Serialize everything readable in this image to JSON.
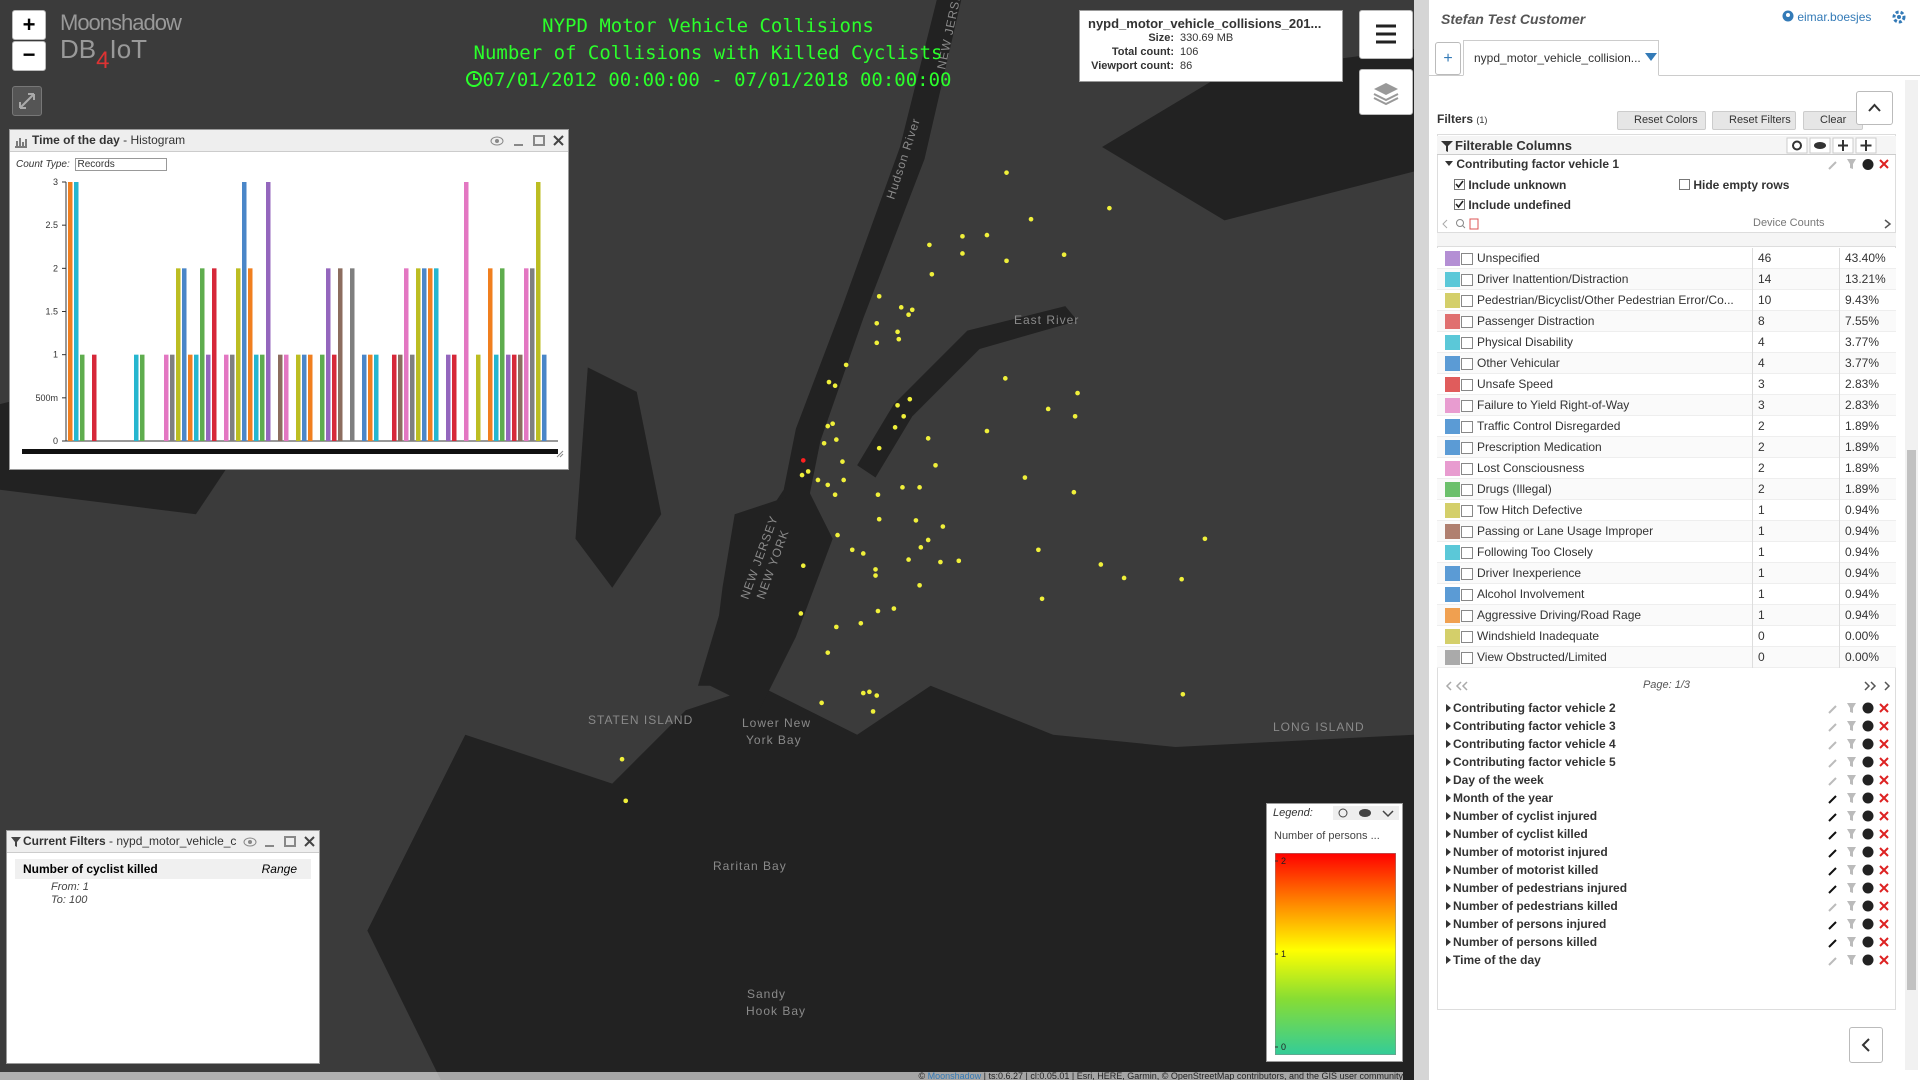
{
  "logo": {
    "brand": "Moonshadow",
    "db": "DB",
    "four": "4",
    "iot": "IoT"
  },
  "zoom": {
    "in": "+",
    "out": "−"
  },
  "map": {
    "title": [
      "NYPD Motor Vehicle Collisions",
      "Number of Collisions with Killed Cyclists",
      "07/01/2012 00:00:00 - 07/01/2018 00:00:00"
    ],
    "info": {
      "file": "nypd_motor_vehicle_collisions_201...",
      "rows": [
        {
          "label": "Size:",
          "value": "330.69 MB"
        },
        {
          "label": "Total count:",
          "value": 106
        },
        {
          "label": "Viewport count:",
          "value": 86
        }
      ]
    },
    "labels": [
      "Hudson River",
      "East River",
      "STATEN ISLAND",
      "Lower New",
      "York Bay",
      "Raritan Bay",
      "Sandy",
      "Hook Bay",
      "LONG ISLAND",
      "NEW JERSEY",
      "NEW JERSEY",
      "NEW YORK"
    ],
    "attribution": {
      "prefix": "©",
      "link": "Moonshadow",
      "rest": "| ts:0.6.27 | cl:0.05.01 | Esri, HERE, Garmin, © OpenStreetMap contributors, and the GIS user community"
    }
  },
  "histogram": {
    "title": "Time of the day",
    "subtitle": "- Histogram",
    "count_type_label": "Count Type:",
    "count_type": "Records",
    "ylim": [
      0,
      3
    ],
    "yticks": [
      0,
      {
        "value": 0.5,
        "label": "500m"
      },
      1,
      1.5,
      2,
      2.5,
      3
    ],
    "values": [
      3,
      3,
      1,
      0,
      1,
      0,
      0,
      0,
      0,
      0,
      0,
      1,
      1,
      0,
      0,
      0,
      1,
      1,
      2,
      2,
      1,
      1,
      2,
      1,
      2,
      0,
      1,
      1,
      2,
      3,
      2,
      1,
      1,
      3,
      0,
      1,
      1,
      0,
      1,
      1,
      1,
      0,
      1,
      2,
      1,
      2,
      0,
      2,
      0,
      1,
      1,
      1,
      0,
      0,
      1,
      1,
      2,
      1,
      2,
      2,
      2,
      2,
      0,
      1,
      1,
      0,
      3,
      0,
      1,
      0,
      2,
      1,
      2,
      1,
      1,
      1,
      2,
      2,
      3,
      1
    ],
    "palette": [
      "#f07f1f",
      "#26b6cf",
      "#5fad4e",
      "#9467bd",
      "#d62839",
      "#8c6d5f",
      "#e377c2",
      "#7f7f7f",
      "#bcbd22",
      "#4a86c8"
    ]
  },
  "current_filters": {
    "title": "Current Filters",
    "dataset": "- nypd_motor_vehicle_c",
    "filter": {
      "column": "Number of cyclist killed",
      "kind": "Range",
      "from_label": "From:",
      "from": 1,
      "to_label": "To:",
      "to": 100
    }
  },
  "legend": {
    "label": "Legend:",
    "title": "Number of persons ...",
    "lim": [
      0,
      2
    ],
    "ticks": [
      0,
      1,
      2
    ]
  },
  "sidebar": {
    "customer": "Stefan Test Customer",
    "user": "eimar.boesjes",
    "tab_add": "+",
    "tab": "nypd_motor_vehicle_collision...",
    "filters_label": "Filters",
    "filters_count": "(1)",
    "buttons": [
      "Reset Colors",
      "Reset Filters",
      "Clear"
    ],
    "filterable_columns": "Filterable Columns",
    "open_column": "Contributing factor vehicle 1",
    "options": [
      "Include unknown",
      "Hide empty rows",
      "Include undefined"
    ],
    "counts_header": "Device Counts",
    "page": "Page: 1/3",
    "rows": [
      {
        "color": "#b48fd4",
        "name": "Unspecified",
        "count": 46,
        "percent": "43.40%"
      },
      {
        "color": "#5bc8d8",
        "name": "Driver Inattention/Distraction",
        "count": 14,
        "percent": "13.21%"
      },
      {
        "color": "#d4cf6a",
        "name": "Pedestrian/Bicyclist/Other Pedestrian Error/Co...",
        "count": 10,
        "percent": "9.43%"
      },
      {
        "color": "#e07070",
        "name": "Passenger Distraction",
        "count": 8,
        "percent": "7.55%"
      },
      {
        "color": "#5bc8d8",
        "name": "Physical Disability",
        "count": 4,
        "percent": "3.77%"
      },
      {
        "color": "#5b9bd5",
        "name": "Other Vehicular",
        "count": 4,
        "percent": "3.77%"
      },
      {
        "color": "#e05c5c",
        "name": "Unsafe Speed",
        "count": 3,
        "percent": "2.83%"
      },
      {
        "color": "#e89cd0",
        "name": "Failure to Yield Right-of-Way",
        "count": 3,
        "percent": "2.83%"
      },
      {
        "color": "#5b9bd5",
        "name": "Traffic Control Disregarded",
        "count": 2,
        "percent": "1.89%"
      },
      {
        "color": "#5b9bd5",
        "name": "Prescription Medication",
        "count": 2,
        "percent": "1.89%"
      },
      {
        "color": "#e89cd0",
        "name": "Lost Consciousness",
        "count": 2,
        "percent": "1.89%"
      },
      {
        "color": "#6cc06c",
        "name": "Drugs (Illegal)",
        "count": 2,
        "percent": "1.89%"
      },
      {
        "color": "#d4cf6a",
        "name": "Tow Hitch Defective",
        "count": 1,
        "percent": "0.94%"
      },
      {
        "color": "#b08070",
        "name": "Passing or Lane Usage Improper",
        "count": 1,
        "percent": "0.94%"
      },
      {
        "color": "#5bc8d8",
        "name": "Following Too Closely",
        "count": 1,
        "percent": "0.94%"
      },
      {
        "color": "#5b9bd5",
        "name": "Driver Inexperience",
        "count": 1,
        "percent": "0.94%"
      },
      {
        "color": "#5b9bd5",
        "name": "Alcohol Involvement",
        "count": 1,
        "percent": "0.94%"
      },
      {
        "color": "#f0a050",
        "name": "Aggressive Driving/Road Rage",
        "count": 1,
        "percent": "0.94%"
      },
      {
        "color": "#d4cf6a",
        "name": "Windshield Inadequate",
        "count": 0,
        "percent": "0.00%"
      },
      {
        "color": "#aaaaaa",
        "name": "View Obstructed/Limited",
        "count": 0,
        "percent": "0.00%"
      }
    ],
    "columns": [
      "Contributing factor vehicle 2",
      "Contributing factor vehicle 3",
      "Contributing factor vehicle 4",
      "Contributing factor vehicle 5",
      "Day of the week",
      "Month of the year",
      "Number of cyclist injured",
      "Number of cyclist killed",
      "Number of motorist injured",
      "Number of motorist killed",
      "Number of pedestrians injured",
      "Number of pedestrians killed",
      "Number of persons injured",
      "Number of persons killed",
      "Time of the day"
    ]
  }
}
